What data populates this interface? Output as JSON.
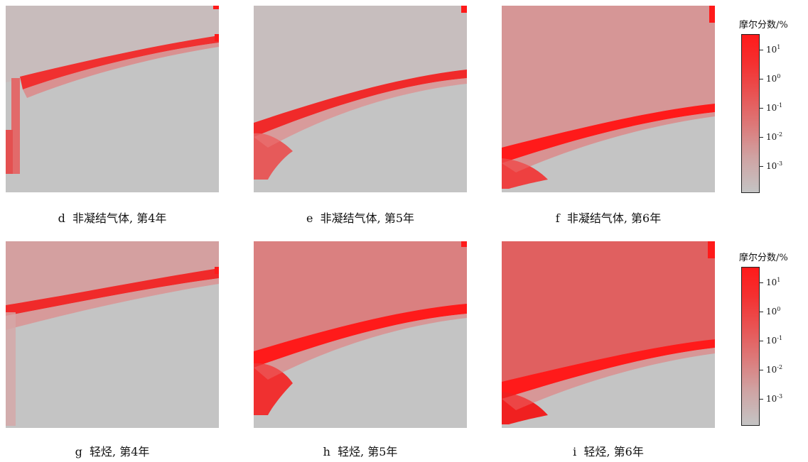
{
  "panels": [
    {
      "letter": "d",
      "label": "非凝结气体, 第4年"
    },
    {
      "letter": "e",
      "label": "非凝结气体, 第5年"
    },
    {
      "letter": "f",
      "label": "非凝结气体, 第6年"
    },
    {
      "letter": "g",
      "label": "轻烃, 第4年"
    },
    {
      "letter": "h",
      "label": "轻烃, 第5年"
    },
    {
      "letter": "i",
      "label": "轻烃, 第6年"
    }
  ],
  "colorbars": [
    {
      "title": "摩尔分数/%",
      "tick_labels": [
        "10",
        "10",
        "10",
        "10",
        "10"
      ],
      "exponents": [
        "1",
        "0",
        "-1",
        "-2",
        "-3"
      ]
    },
    {
      "title": "摩尔分数/%",
      "tick_labels": [
        "10",
        "10",
        "10",
        "10",
        "10"
      ],
      "exponents": [
        "1",
        "0",
        "-1",
        "-2",
        "-3"
      ]
    }
  ],
  "colors": {
    "background_low": "#c4c4c4",
    "peak_red": "#ff1a1a",
    "mid_pink": "#dc8a8a"
  }
}
